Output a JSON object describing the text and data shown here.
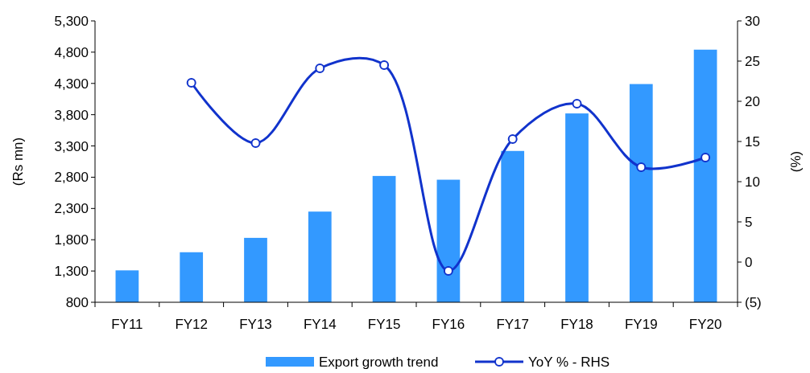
{
  "chart_data": {
    "type": "bar",
    "ylabel": "(Rs mn)",
    "y2label": "(%)",
    "categories": [
      "FY11",
      "FY12",
      "FY13",
      "FY14",
      "FY15",
      "FY16",
      "FY17",
      "FY18",
      "FY19",
      "FY20"
    ],
    "series": [
      {
        "name": "Export growth trend",
        "color": "#3399ff",
        "values": [
          1310,
          1600,
          1830,
          2250,
          2820,
          2760,
          3220,
          3820,
          4290,
          4840
        ]
      },
      {
        "name": "YoY % - RHS",
        "type": "line",
        "axis": "y2",
        "color": "#1133cc",
        "marker": "circle",
        "values": [
          null,
          22.3,
          14.8,
          24.1,
          24.5,
          -1.1,
          15.3,
          19.7,
          11.8,
          13.0
        ]
      }
    ],
    "ylim": [
      800,
      5300
    ],
    "yticks": [
      800,
      {
        "value": 1300,
        "label": "1,300"
      },
      {
        "value": 1800,
        "label": "1,800"
      },
      {
        "value": 2300,
        "label": "2,300"
      },
      {
        "value": 2800,
        "label": "2,800"
      },
      {
        "value": 3300,
        "label": "3,300"
      },
      {
        "value": 3800,
        "label": "3,800"
      },
      {
        "value": 4300,
        "label": "4,300"
      },
      {
        "value": 4800,
        "label": "4,800"
      },
      {
        "value": 5300,
        "label": "5,300"
      }
    ],
    "y2lim": [
      -5,
      30
    ],
    "y2ticks": [
      {
        "value": -5,
        "label": "(5)"
      },
      0,
      5,
      10,
      15,
      20,
      25,
      30
    ],
    "grid": false,
    "legend": "bottom"
  }
}
